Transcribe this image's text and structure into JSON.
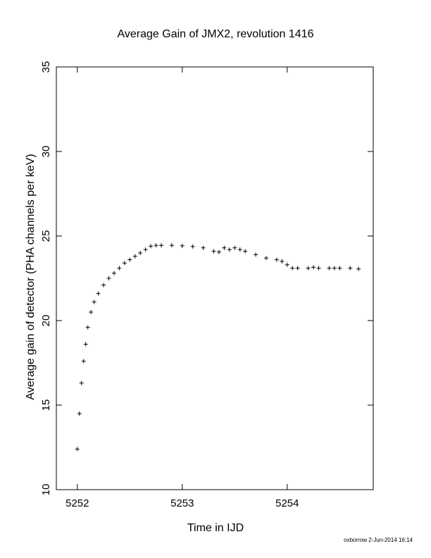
{
  "chart_data": {
    "type": "scatter",
    "title": "Average Gain of JMX2, revolution 1416",
    "xlabel": "Time in IJD",
    "ylabel": "Average gain of detector (PHA channels per keV)",
    "xlim": [
      5251.8,
      5254.82
    ],
    "ylim": [
      10,
      35
    ],
    "xticks": [
      5252,
      5253,
      5254
    ],
    "yticks": [
      10,
      15,
      20,
      25,
      30,
      35
    ],
    "marker": "plus",
    "grid": false,
    "series": [
      {
        "x": [
          5252.0,
          5252.02,
          5252.04,
          5252.06,
          5252.08,
          5252.1,
          5252.13,
          5252.16,
          5252.2,
          5252.25,
          5252.3,
          5252.35,
          5252.4,
          5252.45,
          5252.5,
          5252.55,
          5252.6,
          5252.65,
          5252.7,
          5252.75,
          5252.8,
          5252.9,
          5253.0,
          5253.1,
          5253.2,
          5253.3,
          5253.35,
          5253.4,
          5253.45,
          5253.5,
          5253.55,
          5253.6,
          5253.7,
          5253.8,
          5253.9,
          5253.95,
          5254.0,
          5254.05,
          5254.1,
          5254.2,
          5254.25,
          5254.3,
          5254.4,
          5254.45,
          5254.5,
          5254.6,
          5254.68
        ],
        "y": [
          12.4,
          14.5,
          16.3,
          17.6,
          18.6,
          19.6,
          20.5,
          21.1,
          21.6,
          22.1,
          22.5,
          22.8,
          23.1,
          23.4,
          23.6,
          23.8,
          24.0,
          24.2,
          24.4,
          24.45,
          24.45,
          24.45,
          24.42,
          24.38,
          24.3,
          24.1,
          24.05,
          24.3,
          24.2,
          24.3,
          24.2,
          24.1,
          23.9,
          23.7,
          23.6,
          23.5,
          23.3,
          23.1,
          23.1,
          23.1,
          23.15,
          23.1,
          23.1,
          23.1,
          23.1,
          23.1,
          23.05
        ]
      }
    ]
  },
  "footer": {
    "credit": "oxborrow  2-Jun-2014 16:14"
  }
}
